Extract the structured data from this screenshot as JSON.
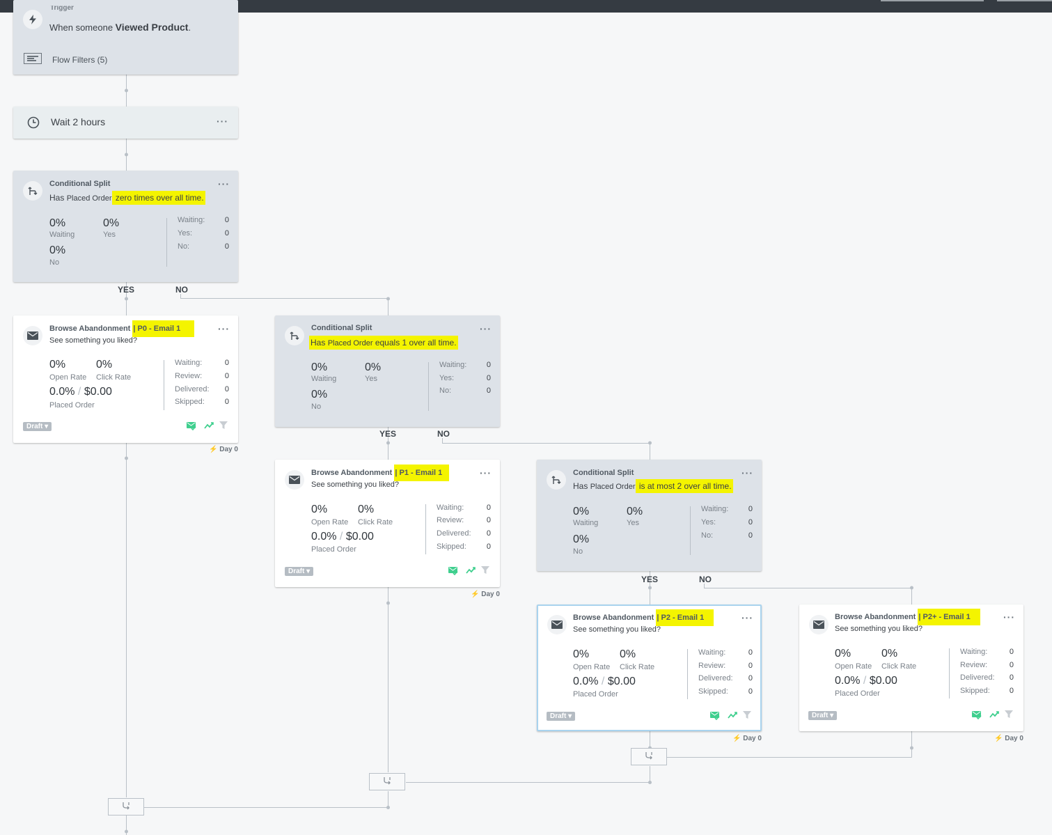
{
  "trigger": {
    "label": "Trigger",
    "text_prefix": "When someone ",
    "text_metric": "Viewed Product",
    "text_suffix": ".",
    "filters_label": "Flow Filters (5)"
  },
  "wait": {
    "label": "Wait 2 hours",
    "menu": "···"
  },
  "split1": {
    "title": "Conditional Split",
    "desc_prefix": "Has ",
    "desc_metric": "Placed Order",
    "desc_hl_lead": "",
    "desc_highlight": " zero times over all time.",
    "waiting_pct": "0%",
    "waiting_lbl": "Waiting",
    "yes_pct": "0%",
    "yes_lbl": "Yes",
    "no_pct": "0%",
    "no_lbl": "No",
    "stat_waiting": "Waiting:",
    "stat_waiting_v": "0",
    "stat_yes": "Yes:",
    "stat_yes_v": "0",
    "stat_no": "No:",
    "stat_no_v": "0",
    "yes_branch": "YES",
    "no_branch": "NO",
    "menu": "···"
  },
  "email0": {
    "title_prefix": "Browse Abandonment ",
    "title_highlight": "| P0 - Email 1",
    "subject": "See something you liked?",
    "open_pct": "0%",
    "open_lbl": "Open Rate",
    "click_pct": "0%",
    "click_lbl": "Click Rate",
    "conv_pct": "0.0%",
    "slash": "/",
    "revenue": "$0.00",
    "conv_lbl": "Placed Order",
    "s_waiting": "Waiting:",
    "s_waiting_v": "0",
    "s_review": "Review:",
    "s_review_v": "0",
    "s_delivered": "Delivered:",
    "s_delivered_v": "0",
    "s_skipped": "Skipped:",
    "s_skipped_v": "0",
    "status": "Draft ▾",
    "day": "Day 0",
    "menu": "···"
  },
  "split2": {
    "title": "Conditional Split",
    "desc_prefix": "",
    "desc_metric": "Placed Order",
    "desc_hl_lead": "Has ",
    "desc_highlight": " equals 1 over all time.",
    "waiting_pct": "0%",
    "waiting_lbl": "Waiting",
    "yes_pct": "0%",
    "yes_lbl": "Yes",
    "no_pct": "0%",
    "no_lbl": "No",
    "stat_waiting": "Waiting:",
    "stat_waiting_v": "0",
    "stat_yes": "Yes:",
    "stat_yes_v": "0",
    "stat_no": "No:",
    "stat_no_v": "0",
    "yes_branch": "YES",
    "no_branch": "NO",
    "menu": "···"
  },
  "email1": {
    "title_prefix": "Browse Abandonment ",
    "title_highlight": "| P1 - Email 1",
    "subject": "See something you liked?",
    "open_pct": "0%",
    "open_lbl": "Open Rate",
    "click_pct": "0%",
    "click_lbl": "Click Rate",
    "conv_pct": "0.0%",
    "slash": "/",
    "revenue": "$0.00",
    "conv_lbl": "Placed Order",
    "s_waiting": "Waiting:",
    "s_waiting_v": "0",
    "s_review": "Review:",
    "s_review_v": "0",
    "s_delivered": "Delivered:",
    "s_delivered_v": "0",
    "s_skipped": "Skipped:",
    "s_skipped_v": "0",
    "status": "Draft ▾",
    "day": "Day 0",
    "menu": "···"
  },
  "split3": {
    "title": "Conditional Split",
    "desc_prefix": "Has ",
    "desc_metric": "Placed Order",
    "desc_hl_lead": "",
    "desc_highlight": " is at most 2 over all time.",
    "waiting_pct": "0%",
    "waiting_lbl": "Waiting",
    "yes_pct": "0%",
    "yes_lbl": "Yes",
    "no_pct": "0%",
    "no_lbl": "No",
    "stat_waiting": "Waiting:",
    "stat_waiting_v": "0",
    "stat_yes": "Yes:",
    "stat_yes_v": "0",
    "stat_no": "No:",
    "stat_no_v": "0",
    "yes_branch": "YES",
    "no_branch": "NO",
    "menu": "···"
  },
  "email2": {
    "title_prefix": "Browse Abandonment ",
    "title_highlight": "| P2 - Email 1",
    "subject": "See something you liked?",
    "open_pct": "0%",
    "open_lbl": "Open Rate",
    "click_pct": "0%",
    "click_lbl": "Click Rate",
    "conv_pct": "0.0%",
    "slash": "/",
    "revenue": "$0.00",
    "conv_lbl": "Placed Order",
    "s_waiting": "Waiting:",
    "s_waiting_v": "0",
    "s_review": "Review:",
    "s_review_v": "0",
    "s_delivered": "Delivered:",
    "s_delivered_v": "0",
    "s_skipped": "Skipped:",
    "s_skipped_v": "0",
    "status": "Draft ▾",
    "day": "Day 0",
    "menu": "···"
  },
  "email3": {
    "title_prefix": "Browse Abandonment ",
    "title_highlight": "| P2+ - Email 1",
    "subject": "See something you liked?",
    "open_pct": "0%",
    "open_lbl": "Open Rate",
    "click_pct": "0%",
    "click_lbl": "Click Rate",
    "conv_pct": "0.0%",
    "slash": "/",
    "revenue": "$0.00",
    "conv_lbl": "Placed Order",
    "s_waiting": "Waiting:",
    "s_waiting_v": "0",
    "s_review": "Review:",
    "s_review_v": "0",
    "s_delivered": "Delivered:",
    "s_delivered_v": "0",
    "s_skipped": "Skipped:",
    "s_skipped_v": "0",
    "status": "Draft ▾",
    "day": "Day 0",
    "menu": "···"
  },
  "icons": {
    "trigger": "lightning-icon",
    "filters": "filter-list-icon",
    "wait": "clock-icon",
    "split": "split-arrows-icon",
    "email": "envelope-icon",
    "join": "merge-icon",
    "smart_send": "mail-check-icon",
    "tracking": "trend-icon",
    "filter": "funnel-icon"
  },
  "colors": {
    "highlight": "#f4f400",
    "accent_green": "#3fcf8e",
    "selected_border": "#a9d3ee",
    "topbar": "#353b42"
  }
}
